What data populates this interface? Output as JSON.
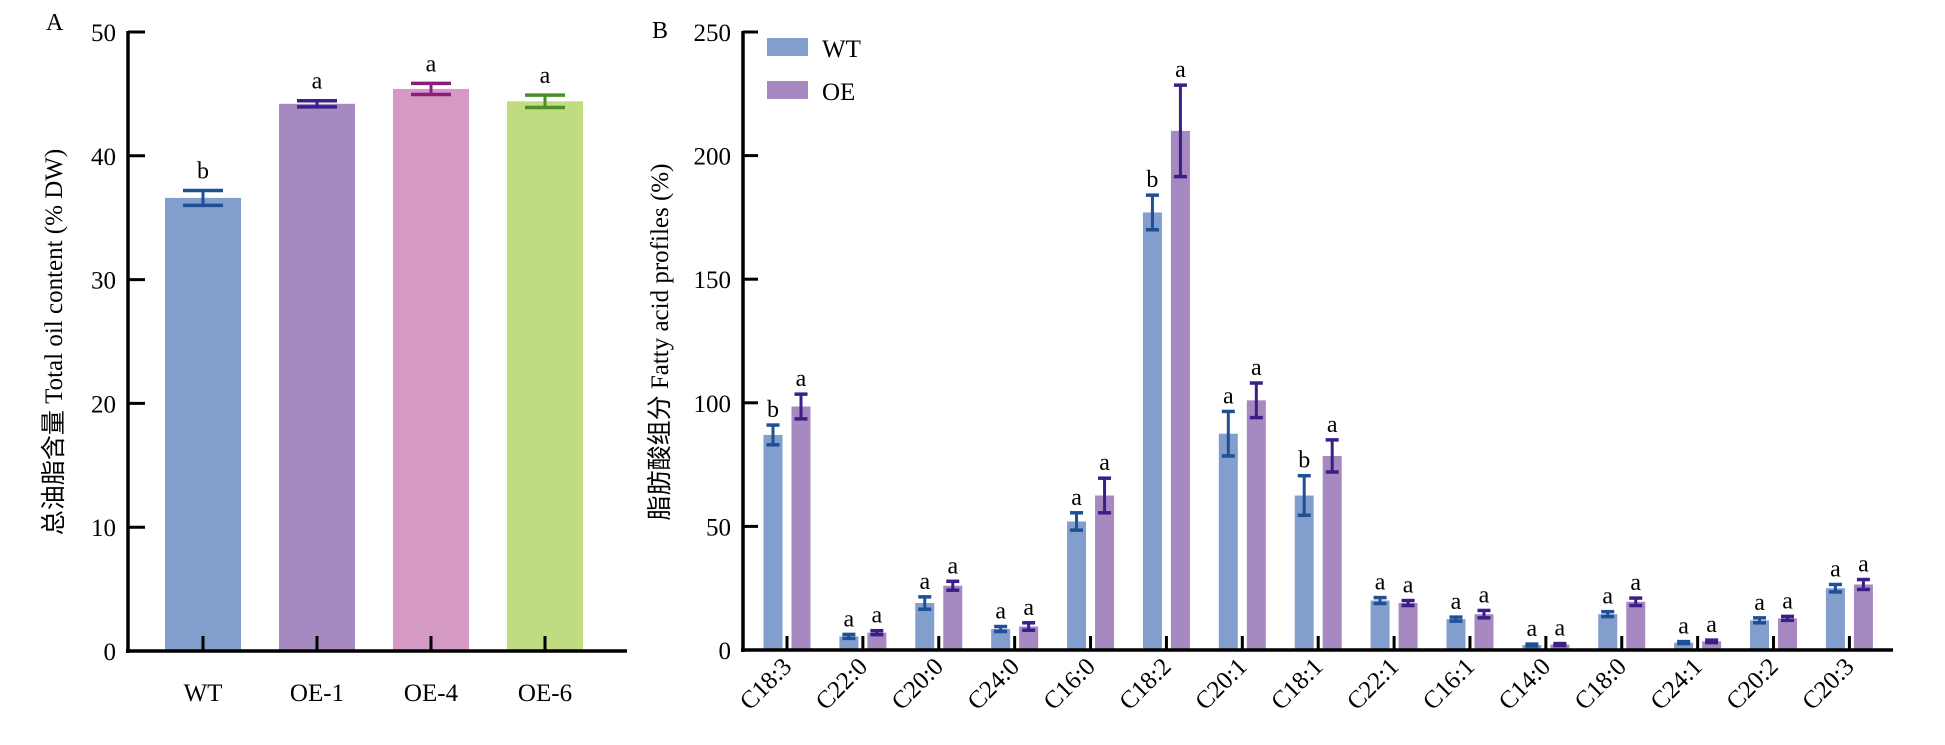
{
  "chart_data": [
    {
      "panel": "A",
      "type": "bar",
      "title": "",
      "xlabel": "",
      "ylabel": "总油脂含量 Total oil content (% DW)",
      "ylim": [
        0,
        50
      ],
      "yticks": [
        0,
        10,
        20,
        30,
        40,
        50
      ],
      "categories": [
        "WT",
        "OE-1",
        "OE-4",
        "OE-6"
      ],
      "values": [
        36.6,
        44.2,
        45.4,
        44.4
      ],
      "errors": [
        0.6,
        0.25,
        0.45,
        0.5
      ],
      "significance": [
        "b",
        "a",
        "a",
        "a"
      ],
      "bar_colors": [
        "#829ecd",
        "#a689c0",
        "#d49ac3",
        "#c1db80"
      ],
      "error_colors": [
        "#1f4f95",
        "#3c1f86",
        "#8e1b7e",
        "#4a8e2b"
      ],
      "grid": false
    },
    {
      "panel": "B",
      "type": "bar",
      "title": "",
      "xlabel": "",
      "ylabel": "脂肪酸组分 Fatty acid profiles (%)",
      "ylim": [
        0,
        250
      ],
      "yticks": [
        0,
        50,
        100,
        150,
        200,
        250
      ],
      "categories": [
        "C18:3",
        "C22:0",
        "C20:0",
        "C24:0",
        "C16:0",
        "C18:2",
        "C20:1",
        "C18:1",
        "C22:1",
        "C16:1",
        "C14:0",
        "C18:0",
        "C24:1",
        "C20:2",
        "C20:3"
      ],
      "legend": {
        "position": "top-left",
        "entries": [
          "WT",
          "OE"
        ]
      },
      "series": [
        {
          "name": "WT",
          "color": "#829ecd",
          "error_color": "#1f4f95",
          "values": [
            87,
            5.5,
            19,
            8.5,
            52,
            177,
            87.5,
            62.5,
            20,
            12.5,
            2,
            14.5,
            3,
            12,
            25
          ],
          "errors": [
            4,
            0.8,
            2.5,
            1,
            3.5,
            7,
            9,
            8,
            1.2,
            0.8,
            0.4,
            1,
            0.4,
            1,
            1.5
          ],
          "significance": [
            "b",
            "a",
            "a",
            "a",
            "a",
            "b",
            "a",
            "b",
            "a",
            "a",
            "a",
            "a",
            "a",
            "a",
            "a"
          ]
        },
        {
          "name": "OE",
          "color": "#a689c0",
          "error_color": "#3c1f86",
          "values": [
            98.5,
            7,
            26,
            9.5,
            62.5,
            210,
            101,
            78.5,
            19,
            14.5,
            2.2,
            19.5,
            3.5,
            12.8,
            26.5
          ],
          "errors": [
            5,
            0.8,
            1.8,
            1.5,
            7,
            18.5,
            7,
            6.5,
            1,
            1.5,
            0.4,
            1.5,
            0.5,
            0.8,
            2
          ],
          "significance": [
            "a",
            "a",
            "a",
            "a",
            "a",
            "a",
            "a",
            "a",
            "a",
            "a",
            "a",
            "a",
            "a",
            "a",
            "a"
          ]
        }
      ],
      "grid": false
    }
  ]
}
